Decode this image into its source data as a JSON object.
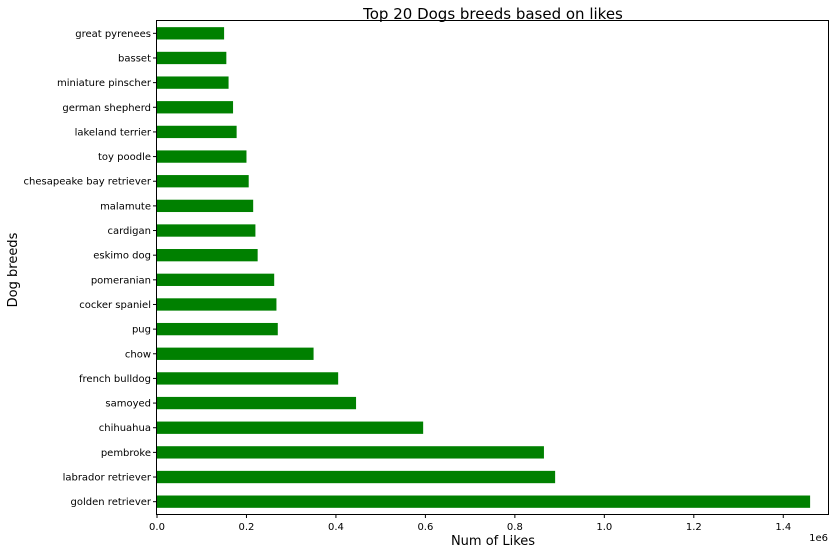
{
  "chart_data": {
    "type": "bar",
    "orientation": "horizontal",
    "title": "Top 20 Dogs breeds based on likes",
    "xlabel": "Num of Likes",
    "ylabel": "Dog breeds",
    "x_scale_label": "1e6",
    "xlim": [
      0,
      1.5
    ],
    "x_ticks": [
      "0.0",
      "0.2",
      "0.4",
      "0.6",
      "0.8",
      "1.0",
      "1.2",
      "1.4"
    ],
    "bar_color": "#008000",
    "grid": false,
    "legend": "none",
    "categories": [
      "golden retriever",
      "labrador retriever",
      "pembroke",
      "chihuahua",
      "samoyed",
      "french bulldog",
      "chow",
      "pug",
      "cocker spaniel",
      "pomeranian",
      "eskimo dog",
      "cardigan",
      "malamute",
      "chesapeake bay retriever",
      "toy poodle",
      "lakeland terrier",
      "german shepherd",
      "miniature pinscher",
      "basset",
      "great pyrenees"
    ],
    "values": [
      1.46,
      0.89,
      0.865,
      0.595,
      0.445,
      0.405,
      0.35,
      0.27,
      0.267,
      0.262,
      0.225,
      0.22,
      0.215,
      0.205,
      0.2,
      0.178,
      0.17,
      0.16,
      0.155,
      0.15
    ]
  }
}
